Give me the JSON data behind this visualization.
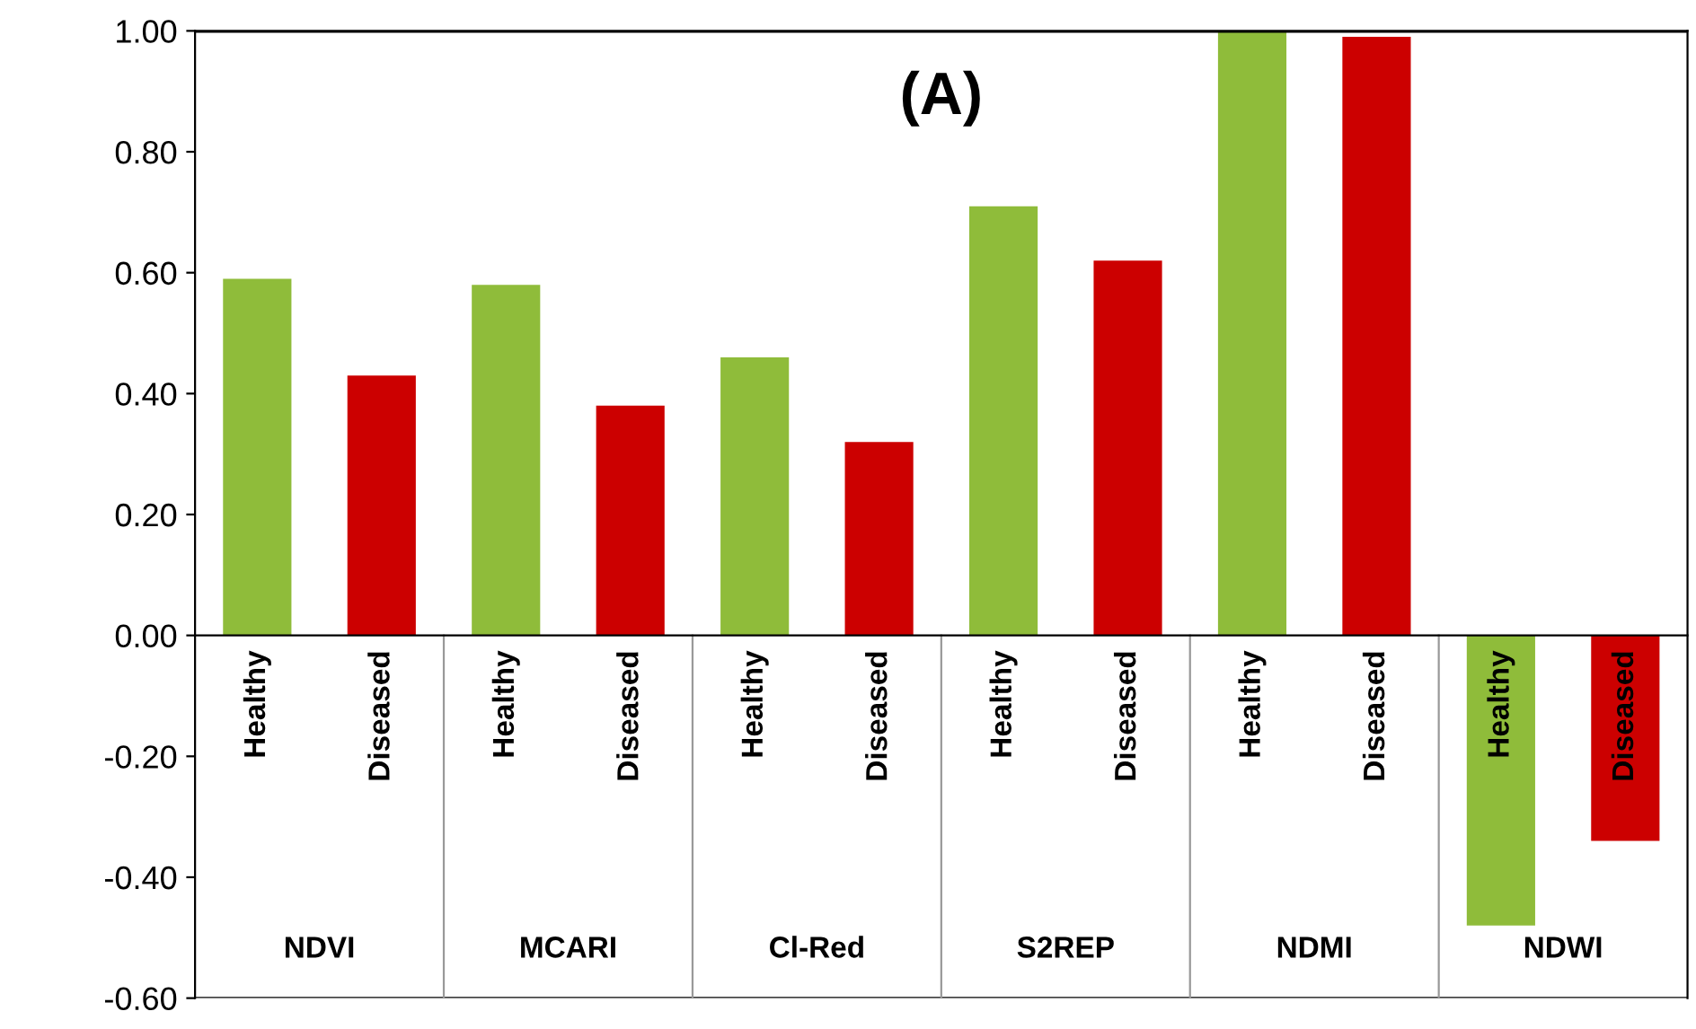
{
  "chart_data": {
    "type": "bar",
    "title": "(A)",
    "categories": [
      "Healthy",
      "Diseased",
      "Healthy",
      "Diseased",
      "Healthy",
      "Diseased",
      "Healthy",
      "Diseased",
      "Healthy",
      "Diseased",
      "Healthy",
      "Diseased"
    ],
    "values": [
      0.59,
      0.43,
      0.58,
      0.38,
      0.46,
      0.32,
      0.71,
      0.62,
      1.0,
      0.99,
      -0.48,
      -0.34
    ],
    "colors": [
      "#8fbc3a",
      "#cc0000",
      "#8fbc3a",
      "#cc0000",
      "#8fbc3a",
      "#cc0000",
      "#8fbc3a",
      "#cc0000",
      "#8fbc3a",
      "#cc0000",
      "#8fbc3a",
      "#cc0000"
    ],
    "annotations": [
      "NDVI",
      "MCARI",
      "Cl-Red",
      "S2REP",
      "NDMI",
      "NDWI"
    ],
    "ylim": [
      -0.6,
      1.0
    ],
    "yticks": [
      {
        "value": -0.6,
        "label": "-0.60"
      },
      {
        "value": -0.4,
        "label": "-0.40"
      },
      {
        "value": -0.2,
        "label": "-0.20"
      },
      {
        "value": 0,
        "label": "0.00"
      },
      {
        "value": 0.2,
        "label": "0.20"
      },
      {
        "value": 0.4,
        "label": "0.40"
      },
      {
        "value": 0.6,
        "label": "0.60"
      },
      {
        "value": 0.8,
        "label": "0.80"
      },
      {
        "value": 1.0,
        "label": "1.00"
      }
    ],
    "grid": false,
    "legend": false
  }
}
